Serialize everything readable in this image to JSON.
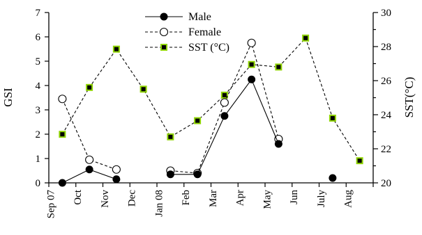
{
  "chart_data": {
    "type": "line",
    "title": "",
    "xlabel": "",
    "ylabel": "GSI",
    "y2label": "SST(°C)",
    "ylim": [
      0,
      7
    ],
    "y2lim": [
      20,
      30
    ],
    "yticks": [
      0,
      1,
      2,
      3,
      4,
      5,
      6,
      7
    ],
    "y2ticks": [
      20,
      22,
      24,
      26,
      28,
      30
    ],
    "categories": [
      "Sep 07",
      "Oct",
      "Nov",
      "Dec",
      "Jan 08",
      "Feb",
      "Mar",
      "Apr",
      "May",
      "Jun",
      "July",
      "Aug"
    ],
    "grid": false,
    "legend_position": "top-center",
    "series": [
      {
        "name": "Male",
        "axis": "left",
        "style": "solid",
        "marker": "filled-circle",
        "color": "#000000",
        "segments": [
          [
            [
              0.5,
              0.0
            ],
            [
              1.5,
              0.55
            ],
            [
              2.5,
              0.15
            ]
          ],
          [
            [
              4.5,
              0.35
            ],
            [
              5.5,
              0.35
            ],
            [
              6.5,
              2.75
            ],
            [
              7.5,
              4.25
            ],
            [
              8.5,
              1.6
            ]
          ],
          [
            [
              10.5,
              0.2
            ]
          ]
        ]
      },
      {
        "name": "Female",
        "axis": "left",
        "style": "dashed",
        "marker": "open-circle",
        "color": "#000000",
        "segments": [
          [
            [
              0.5,
              3.45
            ],
            [
              1.5,
              0.95
            ],
            [
              2.5,
              0.55
            ]
          ],
          [
            [
              4.5,
              0.5
            ],
            [
              5.5,
              0.4
            ],
            [
              6.5,
              3.3
            ],
            [
              7.5,
              5.75
            ],
            [
              8.5,
              1.8
            ]
          ]
        ]
      },
      {
        "name": "SST (°C)",
        "axis": "right",
        "style": "dashed",
        "marker": "square",
        "color": "#000000",
        "marker_fill": "#8fd400",
        "points": [
          [
            0.5,
            22.85
          ],
          [
            1.5,
            25.6
          ],
          [
            2.5,
            27.85
          ],
          [
            3.5,
            25.5
          ],
          [
            4.5,
            22.7
          ],
          [
            5.5,
            23.65
          ],
          [
            6.5,
            25.15
          ],
          [
            7.5,
            26.95
          ],
          [
            8.5,
            26.8
          ],
          [
            9.5,
            28.5
          ],
          [
            10.5,
            23.8
          ],
          [
            11.5,
            21.3
          ]
        ]
      }
    ]
  }
}
